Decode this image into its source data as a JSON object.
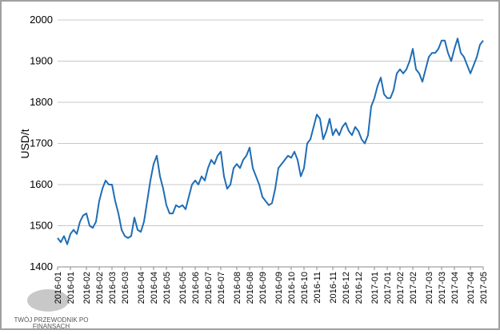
{
  "chart_data": {
    "type": "line",
    "ylabel": "USD/t",
    "watermark": [
      "TWÓJ PRZEWODNIK PO",
      "FINANSACH"
    ],
    "xlim": [
      0,
      133
    ],
    "xticks": [
      {
        "value": 0,
        "label": "2016-01"
      },
      {
        "value": 4,
        "label": "2016-01"
      },
      {
        "value": 9,
        "label": "2016-02"
      },
      {
        "value": 13,
        "label": "2016-02"
      },
      {
        "value": 17,
        "label": "2016-03"
      },
      {
        "value": 21,
        "label": "2016-03"
      },
      {
        "value": 26,
        "label": "2016-04"
      },
      {
        "value": 30,
        "label": "2016-04"
      },
      {
        "value": 34,
        "label": "2016-05"
      },
      {
        "value": 39,
        "label": "2016-05"
      },
      {
        "value": 43,
        "label": "2016-06"
      },
      {
        "value": 47,
        "label": "2016-07"
      },
      {
        "value": 51,
        "label": "2016-07"
      },
      {
        "value": 56,
        "label": "2016-08"
      },
      {
        "value": 60,
        "label": "2016-08"
      },
      {
        "value": 64,
        "label": "2016-09"
      },
      {
        "value": 69,
        "label": "2016-09"
      },
      {
        "value": 73,
        "label": "2016-10"
      },
      {
        "value": 77,
        "label": "2016-10"
      },
      {
        "value": 81,
        "label": "2016-11"
      },
      {
        "value": 86,
        "label": "2016-11"
      },
      {
        "value": 90,
        "label": "2016-12"
      },
      {
        "value": 94,
        "label": "2016-12"
      },
      {
        "value": 99,
        "label": "2017-01"
      },
      {
        "value": 103,
        "label": "2017-01"
      },
      {
        "value": 107,
        "label": "2017-02"
      },
      {
        "value": 111,
        "label": "2017-02"
      },
      {
        "value": 116,
        "label": "2017-03"
      },
      {
        "value": 120,
        "label": "2017-03"
      },
      {
        "value": 124,
        "label": "2017-04"
      },
      {
        "value": 129,
        "label": "2017-04"
      },
      {
        "value": 133,
        "label": "2017-05"
      }
    ],
    "ylim": [
      1400,
      2000
    ],
    "yticks": [
      1400,
      1500,
      1600,
      1700,
      1800,
      1900,
      2000
    ],
    "grid": true,
    "series": [
      {
        "color": "#1f6db5",
        "values": [
          1470,
          1460,
          1475,
          1455,
          1480,
          1490,
          1480,
          1510,
          1525,
          1530,
          1500,
          1495,
          1510,
          1560,
          1590,
          1610,
          1600,
          1600,
          1560,
          1530,
          1490,
          1475,
          1470,
          1475,
          1520,
          1490,
          1485,
          1510,
          1560,
          1610,
          1650,
          1670,
          1620,
          1590,
          1550,
          1530,
          1530,
          1550,
          1545,
          1550,
          1540,
          1570,
          1600,
          1610,
          1600,
          1620,
          1610,
          1640,
          1660,
          1650,
          1670,
          1680,
          1620,
          1590,
          1600,
          1640,
          1650,
          1640,
          1660,
          1670,
          1690,
          1640,
          1620,
          1600,
          1570,
          1560,
          1550,
          1555,
          1590,
          1640,
          1650,
          1660,
          1670,
          1665,
          1680,
          1660,
          1620,
          1640,
          1700,
          1710,
          1740,
          1770,
          1760,
          1710,
          1730,
          1760,
          1720,
          1735,
          1720,
          1740,
          1750,
          1730,
          1720,
          1740,
          1730,
          1710,
          1700,
          1720,
          1790,
          1810,
          1840,
          1860,
          1820,
          1810,
          1810,
          1830,
          1870,
          1880,
          1870,
          1880,
          1900,
          1930,
          1880,
          1870,
          1850,
          1880,
          1910,
          1920,
          1920,
          1930,
          1950,
          1950,
          1920,
          1900,
          1930,
          1955,
          1920,
          1910,
          1890,
          1870,
          1890,
          1910,
          1940,
          1950
        ]
      }
    ]
  }
}
